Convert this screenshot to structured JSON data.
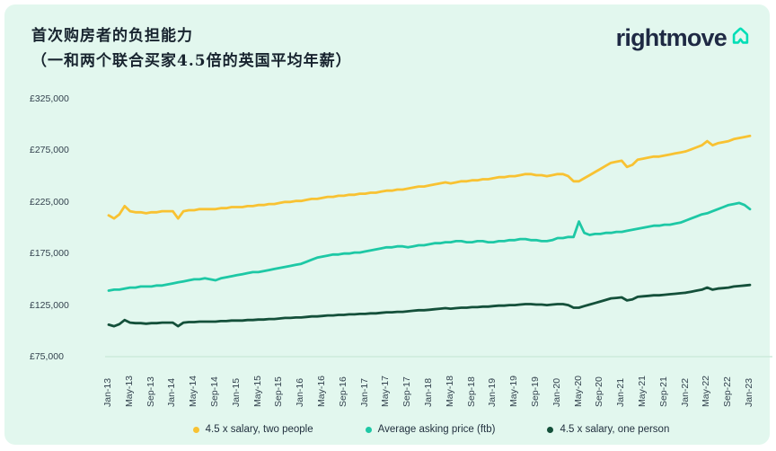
{
  "header": {
    "title": "首次购房者的负担能力",
    "subtitle": "（一和两个联合买家4.5倍的英国平均年薪）"
  },
  "logo": {
    "text": "rightmove",
    "icon": "house-arrow-icon",
    "text_color": "#1F2A44",
    "icon_color": "#00DEB6"
  },
  "colors": {
    "page_background": "#FFFFFF",
    "card_background": "#E2F7EE",
    "axis_line": "#CDEBDC",
    "axis_text": "#33424E",
    "title_text": "#18242F"
  },
  "chart_data": {
    "type": "line",
    "title": "首次购房者的负担能力（一和两个联合买家4.5倍的英国平均年薪）",
    "xlabel": "",
    "ylabel": "",
    "x_unit": "month",
    "x_range": [
      "Jan-13",
      "Jan-23"
    ],
    "x_points": 121,
    "x_tick_labels": [
      "Jan-13",
      "May-13",
      "Sep-13",
      "Jan-14",
      "May-14",
      "Sep-14",
      "Jan-15",
      "May-15",
      "Sep-15",
      "Jan-16",
      "May-16",
      "Sep-16",
      "Jan-17",
      "May-17",
      "Sep-17",
      "Jan-18",
      "May-18",
      "Sep-18",
      "Jan-19",
      "May-19",
      "Sep-19",
      "Jan-20",
      "May-20",
      "Sep-20",
      "Jan-21",
      "May-21",
      "Sep-21",
      "Jan-22",
      "May-22",
      "Sep-22",
      "Jan-23"
    ],
    "x_tick_every_months": 4,
    "y_ticks": [
      {
        "label": "£75,000",
        "value": 75
      },
      {
        "label": "£125,000",
        "value": 125
      },
      {
        "label": "£175,000",
        "value": 175
      },
      {
        "label": "£225,000",
        "value": 225
      },
      {
        "label": "£275,000",
        "value": 275
      },
      {
        "label": "£325,000",
        "value": 325
      }
    ],
    "ylim_thousands_gbp": [
      75,
      325
    ],
    "grid": "x-axis baseline only",
    "legend_position": "bottom-center",
    "series": [
      {
        "name": "4.5 x salary, two people",
        "color": "#F8C232",
        "values_thousands_gbp": [
          212,
          209,
          213,
          221,
          216,
          215,
          215,
          214,
          215,
          215,
          216,
          216,
          216,
          209,
          216,
          217,
          217,
          218,
          218,
          218,
          218,
          219,
          219,
          220,
          220,
          220,
          221,
          221,
          222,
          222,
          223,
          223,
          224,
          225,
          225,
          226,
          226,
          227,
          228,
          228,
          229,
          230,
          230,
          231,
          231,
          232,
          232,
          233,
          233,
          234,
          234,
          235,
          236,
          236,
          237,
          237,
          238,
          239,
          240,
          240,
          241,
          242,
          243,
          244,
          243,
          244,
          245,
          245,
          246,
          246,
          247,
          247,
          248,
          249,
          249,
          250,
          250,
          251,
          252,
          252,
          251,
          251,
          250,
          251,
          252,
          252,
          250,
          245,
          245,
          248,
          251,
          254,
          257,
          260,
          263,
          264,
          265,
          259,
          261,
          266,
          267,
          268,
          269,
          269,
          270,
          271,
          272,
          273,
          274,
          276,
          278,
          280,
          284,
          280,
          282,
          283,
          284,
          286,
          287,
          288,
          289
        ]
      },
      {
        "name": "Average asking price (ftb)",
        "color": "#1EC8A5",
        "values_thousands_gbp": [
          139,
          140,
          140,
          141,
          142,
          142,
          143,
          143,
          143,
          144,
          144,
          145,
          146,
          147,
          148,
          149,
          150,
          150,
          151,
          150,
          149,
          151,
          152,
          153,
          154,
          155,
          156,
          157,
          157,
          158,
          159,
          160,
          161,
          162,
          163,
          164,
          165,
          167,
          169,
          171,
          172,
          173,
          174,
          174,
          175,
          175,
          176,
          176,
          177,
          178,
          179,
          180,
          181,
          181,
          182,
          182,
          181,
          182,
          183,
          183,
          184,
          185,
          185,
          186,
          186,
          187,
          187,
          186,
          186,
          187,
          187,
          186,
          186,
          187,
          187,
          188,
          188,
          189,
          189,
          188,
          188,
          187,
          187,
          188,
          190,
          190,
          191,
          191,
          206,
          195,
          193,
          194,
          194,
          195,
          195,
          196,
          196,
          197,
          198,
          199,
          200,
          201,
          202,
          202,
          203,
          203,
          204,
          205,
          207,
          209,
          211,
          213,
          214,
          216,
          218,
          220,
          222,
          223,
          224,
          222,
          218
        ]
      },
      {
        "name": "4.5 x salary, one person",
        "color": "#14503A",
        "values_thousands_gbp": [
          106,
          104.5,
          106.5,
          110.5,
          108,
          107.5,
          107.5,
          107,
          107.5,
          107.5,
          108,
          108,
          108,
          104.5,
          108,
          108.5,
          108.5,
          109,
          109,
          109,
          109,
          109.5,
          109.5,
          110,
          110,
          110,
          110.5,
          110.5,
          111,
          111,
          111.5,
          111.5,
          112,
          112.5,
          112.5,
          113,
          113,
          113.5,
          114,
          114,
          114.5,
          115,
          115,
          115.5,
          115.5,
          116,
          116,
          116.5,
          116.5,
          117,
          117,
          117.5,
          118,
          118,
          118.5,
          118.5,
          119,
          119.5,
          120,
          120,
          120.5,
          121,
          121.5,
          122,
          121.5,
          122,
          122.5,
          122.5,
          123,
          123,
          123.5,
          123.5,
          124,
          124.5,
          124.5,
          125,
          125,
          125.5,
          126,
          126,
          125.5,
          125.5,
          125,
          125.5,
          126,
          126,
          125,
          122.5,
          122.5,
          124,
          125.5,
          127,
          128.5,
          130,
          131.5,
          132,
          132.5,
          129.5,
          130.5,
          133,
          133.5,
          134,
          134.5,
          134.5,
          135,
          135.5,
          136,
          136.5,
          137,
          138,
          139,
          140,
          142,
          140,
          141,
          141.5,
          142,
          143,
          143.5,
          144,
          144.5
        ]
      }
    ]
  },
  "legend": {
    "items": [
      {
        "label": "4.5 x salary, two people",
        "color": "#F8C232"
      },
      {
        "label": "Average asking price (ftb)",
        "color": "#1EC8A5"
      },
      {
        "label": "4.5 x salary, one person",
        "color": "#14503A"
      }
    ]
  }
}
